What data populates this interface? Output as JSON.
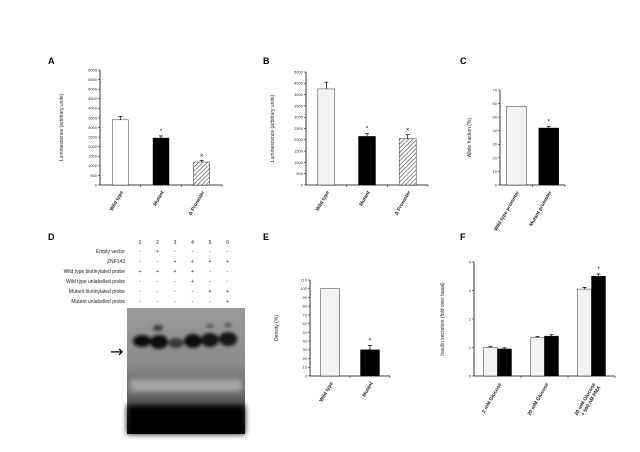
{
  "figure": {
    "panel_labels": [
      "A",
      "B",
      "C",
      "D",
      "E",
      "F"
    ]
  },
  "colors": {
    "light_bar": "#f2f2f2",
    "dark_bar": "#000000",
    "hatch": "#444444",
    "gel_bg": "#8c8c8c"
  },
  "chart_data": [
    {
      "panel": "A",
      "type": "bar",
      "ylabel": "Luminescence (arbitrary units)",
      "categories": [
        "Wild type",
        "Mutant",
        "Δ Promoter"
      ],
      "values": [
        3400,
        2450,
        1200
      ],
      "errors": [
        180,
        110,
        90
      ],
      "fills": [
        "white",
        "black",
        "hatch"
      ],
      "significance": [
        "",
        "*",
        "×"
      ],
      "ylim": [
        0,
        6000
      ],
      "yticks": [
        0,
        500,
        1000,
        1500,
        2000,
        2500,
        3000,
        3500,
        4000,
        4500,
        5000,
        5500,
        6000
      ],
      "ytick_labels": [
        "0",
        "500",
        "1000",
        "1500",
        "2000",
        "2500",
        "3000",
        "3500",
        "4000",
        "4500",
        "5000",
        "5500",
        "6000"
      ]
    },
    {
      "panel": "B",
      "type": "bar",
      "ylabel": "Luminescence (arbitrary units)",
      "categories": [
        "Wild type",
        "Mutant",
        "Δ Promoter"
      ],
      "values": [
        4250,
        2150,
        2050
      ],
      "errors": [
        300,
        120,
        180
      ],
      "fills": [
        "light",
        "black",
        "hatch"
      ],
      "significance": [
        "",
        "*",
        "×"
      ],
      "ylim": [
        0,
        5000
      ],
      "yticks": [
        0,
        500,
        1000,
        1500,
        2000,
        2500,
        3000,
        3500,
        4000,
        4500,
        5000
      ],
      "ytick_labels": [
        "0",
        "500",
        "1000",
        "1500",
        "2000",
        "2500",
        "3000",
        "3500",
        "4000",
        "4500",
        "5000"
      ]
    },
    {
      "panel": "C",
      "type": "bar",
      "ylabel": "Allele fraction (%)",
      "categories": [
        "Wild type promoter",
        "Mutant promoter"
      ],
      "values": [
        58,
        42
      ],
      "errors": [
        0,
        1
      ],
      "fills": [
        "light",
        "black"
      ],
      "significance": [
        "",
        "*"
      ],
      "ylim": [
        0,
        70
      ],
      "yticks": [
        0,
        10,
        20,
        30,
        40,
        50,
        60,
        70
      ],
      "ytick_labels": [
        "0",
        "10",
        "20",
        "30",
        "40",
        "50",
        "60",
        "70"
      ]
    },
    {
      "panel": "E",
      "type": "bar",
      "ylabel": "Density (%)",
      "categories": [
        "Wild type",
        "Mutant"
      ],
      "values": [
        100,
        30
      ],
      "errors": [
        0,
        5
      ],
      "fills": [
        "light",
        "black"
      ],
      "significance": [
        "",
        "*"
      ],
      "ylim": [
        0,
        110
      ],
      "yticks": [
        0,
        10,
        20,
        30,
        40,
        50,
        60,
        70,
        80,
        90,
        100,
        110
      ],
      "ytick_labels": [
        "0",
        "10",
        "20",
        "30",
        "40",
        "50",
        "60",
        "70",
        "80",
        "90",
        "100",
        "110"
      ]
    },
    {
      "panel": "F",
      "type": "bar",
      "ylabel": "Insulin secretion (fold over basal)",
      "categories": [
        "2 mM Glucose",
        "20 mM Glucose",
        "20 mM Glucose + 500 nM PMA"
      ],
      "series": [
        {
          "values": [
            1.0,
            1.35,
            3.05
          ],
          "errors": [
            0.03,
            0.04,
            0.06
          ],
          "fill": "light"
        },
        {
          "values": [
            0.95,
            1.4,
            3.5
          ],
          "errors": [
            0.04,
            0.05,
            0.08
          ],
          "fill": "black"
        }
      ],
      "significance": [
        "",
        "",
        "*"
      ],
      "ylim": [
        0,
        4
      ],
      "yticks": [
        0,
        1,
        2,
        3,
        4
      ],
      "ytick_labels": [
        "0",
        "1",
        "2",
        "3",
        "4"
      ]
    }
  ],
  "gel": {
    "lane_numbers": [
      "1",
      "2",
      "3",
      "4",
      "5",
      "6"
    ],
    "rows": [
      {
        "label": "Empty vector",
        "marks": [
          "-",
          "+",
          "-",
          "-",
          "-",
          "-"
        ]
      },
      {
        "label": "ZNF143",
        "marks": [
          "-",
          "-",
          "+",
          "+",
          "+",
          "+"
        ]
      },
      {
        "label": "Wild type biotinylated probe",
        "marks": [
          "+",
          "+",
          "+",
          "+",
          "-",
          "-"
        ]
      },
      {
        "label": "Wild type unlabelled probe",
        "marks": [
          "-",
          "-",
          "-",
          "+",
          "-",
          "-"
        ]
      },
      {
        "label": "Mutant biotinylated probe",
        "marks": [
          "-",
          "-",
          "-",
          "-",
          "+",
          "+"
        ]
      },
      {
        "label": "Mutant unlabelled probe",
        "marks": [
          "-",
          "-",
          "-",
          "-",
          "-",
          "+"
        ]
      }
    ],
    "arrow": "→"
  }
}
